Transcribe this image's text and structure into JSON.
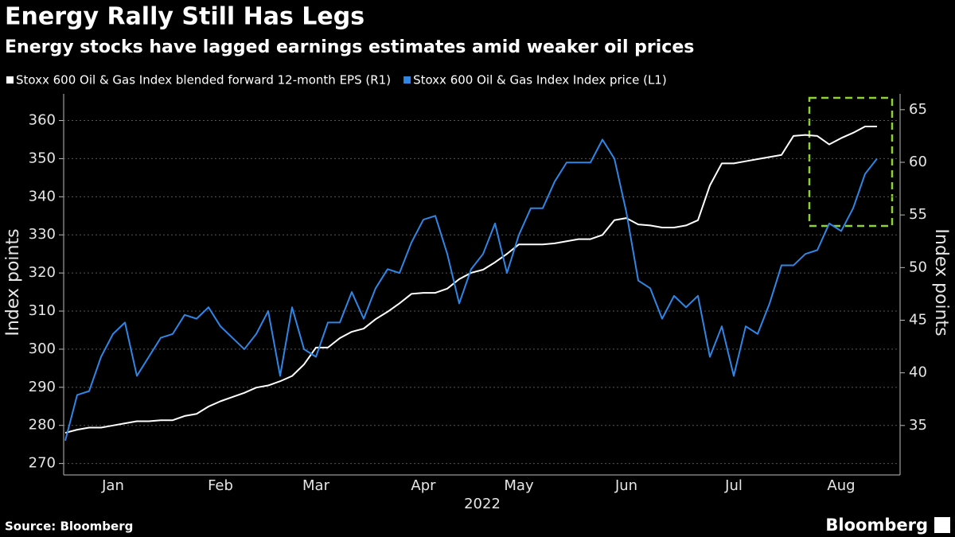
{
  "chart_data": {
    "type": "line",
    "title": "Energy Rally Still Has Legs",
    "subtitle": "Energy stocks have lagged earnings estimates amid weaker oil prices",
    "source": "Source: Bloomberg",
    "brand": "Bloomberg",
    "x_label": "2022",
    "y_label": "Index points",
    "y2_label": "Index points",
    "categories": [
      null,
      null,
      null,
      null,
      "Jan",
      null,
      null,
      null,
      null,
      null,
      null,
      null,
      null,
      "Feb",
      null,
      null,
      null,
      null,
      null,
      null,
      null,
      "Mar",
      null,
      null,
      null,
      null,
      null,
      null,
      null,
      null,
      "Apr",
      null,
      null,
      null,
      null,
      null,
      null,
      null,
      "May",
      null,
      null,
      null,
      null,
      null,
      null,
      null,
      null,
      "Jun",
      null,
      null,
      null,
      null,
      null,
      null,
      null,
      null,
      "Jul",
      null,
      null,
      null,
      null,
      null,
      null,
      null,
      null,
      "Aug",
      null,
      null,
      null
    ],
    "series": [
      {
        "name": "Stoxx 600 Oil & Gas Index blended forward 12-month EPS (R1)",
        "color": "#ffffff",
        "axis": "y2",
        "values": [
          34.3,
          34.6,
          34.8,
          34.8,
          35.0,
          35.2,
          35.4,
          35.4,
          35.5,
          35.5,
          35.9,
          36.1,
          36.8,
          37.3,
          37.7,
          38.1,
          38.6,
          38.8,
          39.2,
          39.7,
          40.8,
          42.4,
          42.4,
          43.3,
          43.9,
          44.2,
          45.1,
          45.8,
          46.6,
          47.5,
          47.6,
          47.6,
          48.0,
          48.9,
          49.5,
          49.8,
          50.5,
          51.3,
          52.2,
          52.2,
          52.2,
          52.3,
          52.5,
          52.7,
          52.7,
          53.1,
          54.5,
          54.7,
          54.1,
          54.0,
          53.8,
          53.8,
          54.0,
          54.5,
          57.8,
          59.9,
          59.9,
          60.1,
          60.3,
          60.5,
          60.7,
          62.5,
          62.6,
          62.5,
          61.7,
          62.3,
          62.8,
          63.4,
          63.4
        ]
      },
      {
        "name": "Stoxx 600 Oil & Gas Index Index price (L1)",
        "color": "#2e86e6",
        "axis": "y",
        "values": [
          276,
          288,
          289,
          298,
          304,
          307,
          293,
          298,
          303,
          304,
          309,
          308,
          311,
          306,
          303,
          300,
          304,
          310,
          293,
          311,
          300,
          298,
          307,
          307,
          315,
          308,
          316,
          321,
          320,
          328,
          334,
          335,
          325,
          312,
          321,
          325,
          333,
          320,
          330,
          337,
          337,
          344,
          349,
          349,
          349,
          355,
          350,
          336,
          318,
          316,
          308,
          314,
          311,
          314,
          298,
          306,
          293,
          306,
          304,
          312,
          322,
          322,
          325,
          326,
          333,
          331,
          337,
          346,
          350
        ]
      }
    ],
    "ylim": [
      267,
      367
    ],
    "yticks": [
      270,
      280,
      290,
      300,
      310,
      320,
      330,
      340,
      350,
      360
    ],
    "y2lim": [
      30.3,
      66.5
    ],
    "y2ticks": [
      35,
      40,
      45,
      50,
      55,
      60,
      65
    ],
    "grid": true,
    "legend": "top"
  }
}
